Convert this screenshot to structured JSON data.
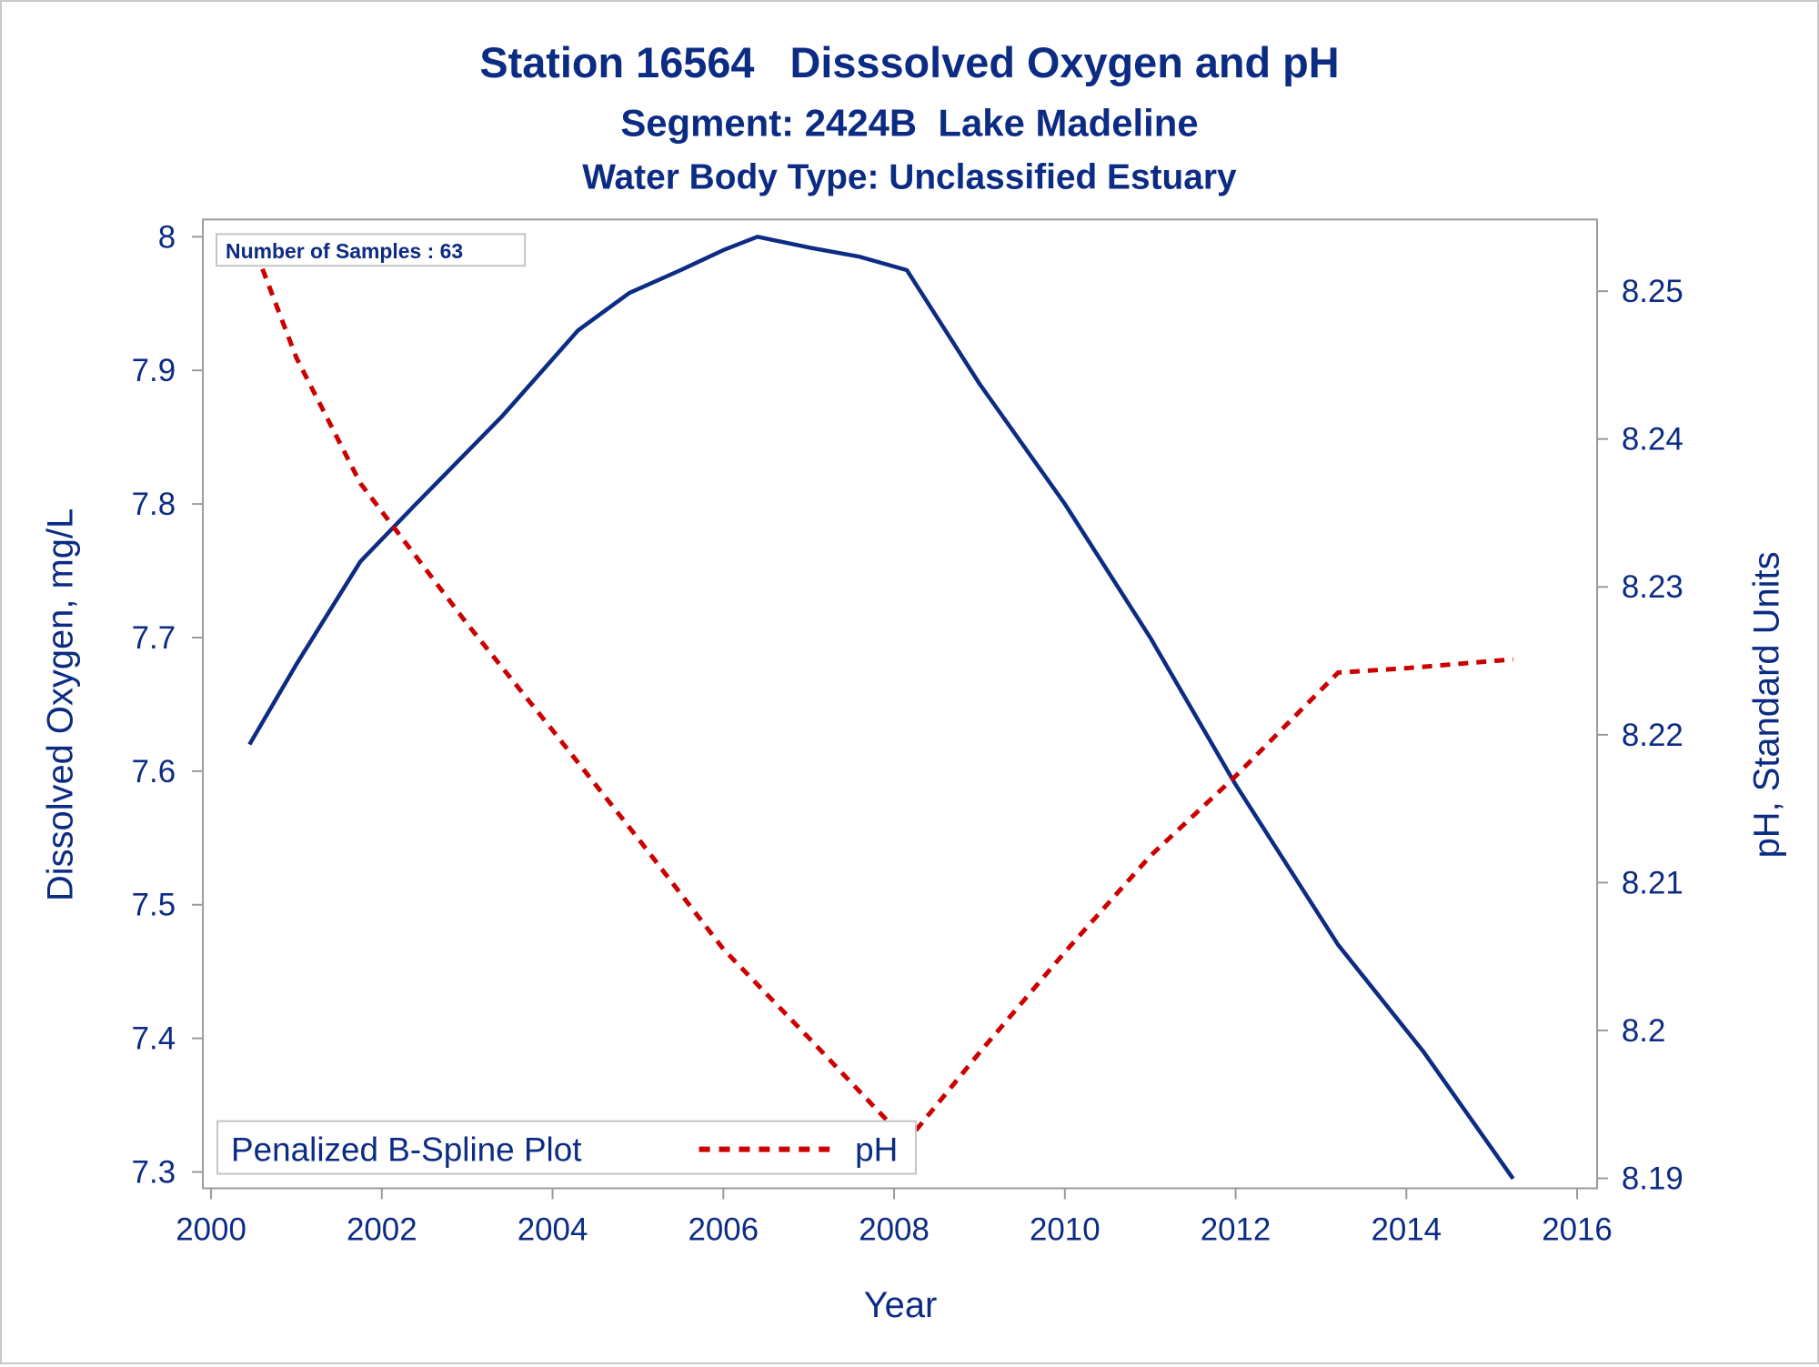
{
  "chart_data": {
    "type": "line",
    "title": "Station 16564   Disssolved Oxygen and pH",
    "subtitle": "Segment: 2424B  Lake Madeline",
    "subtitle2": "Water Body Type: Unclassified Estuary",
    "xlabel": "Year",
    "ylabel": "Dissolved Oxygen, mg/L",
    "y2label": "pH, Standard Units",
    "xlim": [
      2000,
      2016
    ],
    "ylim": [
      7.3,
      8.0
    ],
    "y2lim": [
      8.19,
      8.25
    ],
    "x_ticks": [
      "2000",
      "2002",
      "2004",
      "2006",
      "2008",
      "2010",
      "2012",
      "2014",
      "2016"
    ],
    "y_ticks": [
      "7.3",
      "7.4",
      "7.5",
      "7.6",
      "7.7",
      "7.8",
      "7.9",
      "8"
    ],
    "y2_ticks": [
      "8.19",
      "8.2",
      "8.21",
      "8.22",
      "8.23",
      "8.24",
      "8.25"
    ],
    "grid": false,
    "annotation": "Number of Samples : 63",
    "legend": {
      "title": "Penalized B-Spline Plot",
      "placement": "bottom-left",
      "entries": [
        "pH"
      ]
    },
    "series": [
      {
        "key": "do",
        "axis": "left",
        "color": "#0c2c84",
        "style": "solid",
        "x": [
          2000.45,
          2001.0,
          2001.75,
          2002.4,
          2003.4,
          2004.3,
          2004.9,
          2005.5,
          2006.0,
          2006.4,
          2007.0,
          2007.6,
          2008.15,
          2009.0,
          2010.0,
          2011.0,
          2012.0,
          2013.2,
          2014.2,
          2015.25
        ],
        "y": [
          7.62,
          7.68,
          7.757,
          7.8,
          7.865,
          7.93,
          7.958,
          7.975,
          7.99,
          8.0,
          7.992,
          7.985,
          7.975,
          7.89,
          7.8,
          7.7,
          7.59,
          7.47,
          7.39,
          7.295
        ]
      },
      {
        "key": "ph",
        "name": "pH",
        "axis": "right",
        "color": "#cc0000",
        "style": "dashed",
        "x": [
          2000.45,
          2001.0,
          2001.75,
          2003.0,
          2004.0,
          2005.0,
          2006.0,
          2007.0,
          2008.15,
          2009.0,
          2010.0,
          2011.0,
          2012.0,
          2013.2,
          2014.0,
          2015.25
        ],
        "y": [
          8.2538,
          8.2455,
          8.237,
          8.2275,
          8.2203,
          8.213,
          8.2055,
          8.1995,
          8.1925,
          8.1985,
          8.2053,
          8.2118,
          8.2172,
          8.2242,
          8.2245,
          8.2251
        ]
      }
    ]
  }
}
